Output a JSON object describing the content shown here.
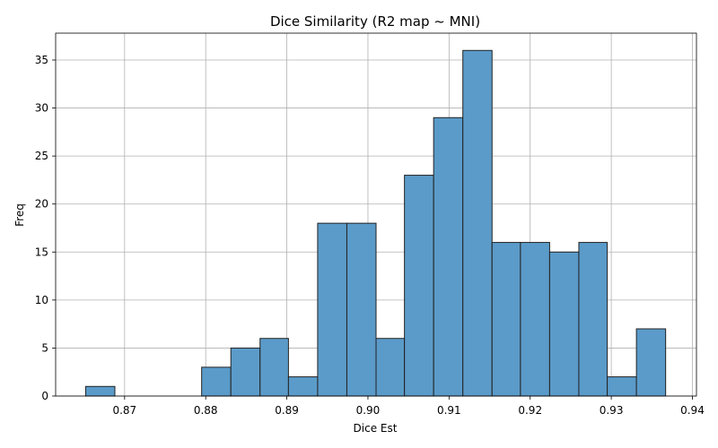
{
  "chart_data": {
    "type": "bar",
    "subtype": "histogram",
    "title": "Dice Similarity (R2 map ~ MNI)",
    "xlabel": "Dice Est",
    "ylabel": "Freq",
    "xlim": [
      0.8615,
      0.9405
    ],
    "ylim": [
      0,
      37.8
    ],
    "xticks": [
      0.87,
      0.88,
      0.89,
      0.9,
      0.91,
      0.92,
      0.93,
      0.94
    ],
    "xtick_labels": [
      "0.87",
      "0.88",
      "0.89",
      "0.90",
      "0.91",
      "0.92",
      "0.93",
      "0.94"
    ],
    "yticks": [
      0,
      5,
      10,
      15,
      20,
      25,
      30,
      35
    ],
    "ytick_labels": [
      "0",
      "5",
      "10",
      "15",
      "20",
      "25",
      "30",
      "35"
    ],
    "bin_edges": [
      0.8652,
      0.8688,
      0.8724,
      0.876,
      0.8795,
      0.8831,
      0.8867,
      0.8902,
      0.8938,
      0.8974,
      0.901,
      0.9045,
      0.9081,
      0.9117,
      0.9153,
      0.9188,
      0.9224,
      0.926,
      0.9295,
      0.9331,
      0.9367
    ],
    "values": [
      1,
      0,
      0,
      0,
      3,
      5,
      6,
      2,
      18,
      18,
      6,
      23,
      29,
      36,
      16,
      16,
      15,
      16,
      2,
      7
    ],
    "bar_color": "#5b9bc9",
    "edge_color": "#222222",
    "grid": true,
    "legend": "none"
  }
}
